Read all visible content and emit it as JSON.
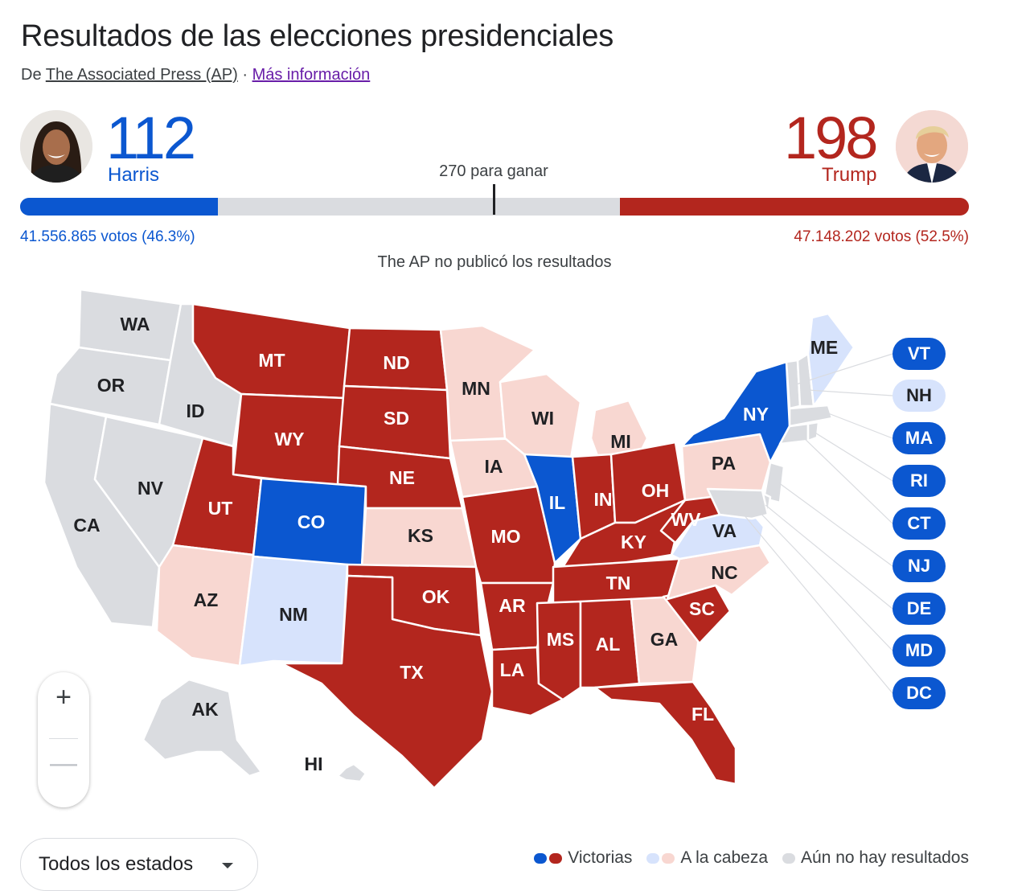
{
  "header": {
    "title": "Resultados de las elecciones presidenciales",
    "source_prefix": "De",
    "source_name": "The Associated Press (AP)",
    "separator": "·",
    "more_info": "Más información"
  },
  "candidates": {
    "harris": {
      "name": "Harris",
      "electoral_votes": "112",
      "popular_votes": "41.556.865 votos (46.3%)",
      "color": "#0b57d0"
    },
    "trump": {
      "name": "Trump",
      "electoral_votes": "198",
      "popular_votes": "47.148.202 votos (52.5%)",
      "color": "#b3261e"
    }
  },
  "race": {
    "to_win": "270 para ganar",
    "total_electoral_votes": 538,
    "dem_fraction": 0.2082,
    "rep_fraction": 0.368,
    "notice": "The AP no publicó los resultados"
  },
  "colors": {
    "win_dem": "#0b57d0",
    "win_rep": "#b3261e",
    "lead_dem": "#d7e3fc",
    "lead_rep": "#f8d7d1",
    "no_results": "#dadce0"
  },
  "map": {
    "states": {
      "WA": "none",
      "OR": "none",
      "CA": "none",
      "ID": "none",
      "NV": "none",
      "MT": "win-r",
      "WY": "win-r",
      "UT": "win-r",
      "AZ": "lead-r",
      "CO": "win-d",
      "NM": "lead-d",
      "ND": "win-r",
      "SD": "win-r",
      "NE": "win-r",
      "KS": "lead-r",
      "OK": "win-r",
      "TX": "win-r",
      "MN": "lead-r",
      "IA": "lead-r",
      "MO": "win-r",
      "AR": "win-r",
      "LA": "win-r",
      "WI": "lead-r",
      "IL": "win-d",
      "MI": "lead-r",
      "IN": "win-r",
      "OH": "win-r",
      "KY": "win-r",
      "TN": "win-r",
      "MS": "win-r",
      "AL": "win-r",
      "GA": "lead-r",
      "FL": "win-r",
      "SC": "win-r",
      "NC": "lead-r",
      "VA": "lead-d",
      "WV": "win-r",
      "PA": "lead-r",
      "NY": "win-d",
      "ME": "lead-d",
      "AK": "none",
      "HI": "none"
    },
    "small_states": [
      {
        "code": "VT",
        "status": "win-d"
      },
      {
        "code": "NH",
        "status": "lead-d"
      },
      {
        "code": "MA",
        "status": "win-d"
      },
      {
        "code": "RI",
        "status": "win-d"
      },
      {
        "code": "CT",
        "status": "win-d"
      },
      {
        "code": "NJ",
        "status": "win-d"
      },
      {
        "code": "DE",
        "status": "win-d"
      },
      {
        "code": "MD",
        "status": "win-d"
      },
      {
        "code": "DC",
        "status": "win-d"
      }
    ]
  },
  "controls": {
    "zoom_in": "+",
    "zoom_out": "—",
    "filter": "Todos los estados"
  },
  "legend": {
    "wins": "Victorias",
    "leading": "A la cabeza",
    "no_results": "Aún no hay resultados"
  }
}
